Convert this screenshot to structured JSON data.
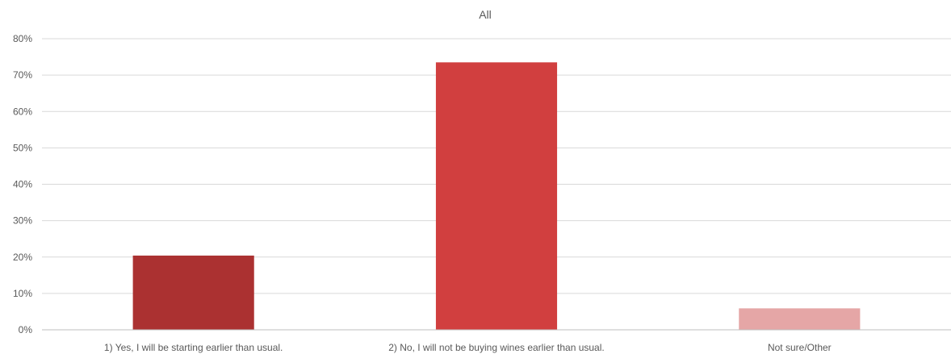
{
  "chart_data": {
    "type": "bar",
    "title": "All",
    "xlabel": "",
    "ylabel": "",
    "categories": [
      "1) Yes, I will be starting earlier than usual.",
      "2) No, I will not be buying wines earlier than usual.",
      "Not sure/Other"
    ],
    "values": [
      20.4,
      73.5,
      5.9
    ],
    "bar_colors": [
      "#ab3131",
      "#d13f3f",
      "#e5a6a6"
    ],
    "ylim": [
      0,
      80
    ],
    "y_ticks": [
      "0%",
      "10%",
      "20%",
      "30%",
      "40%",
      "50%",
      "60%",
      "70%",
      "80%"
    ],
    "grid": true,
    "legend": "none"
  }
}
